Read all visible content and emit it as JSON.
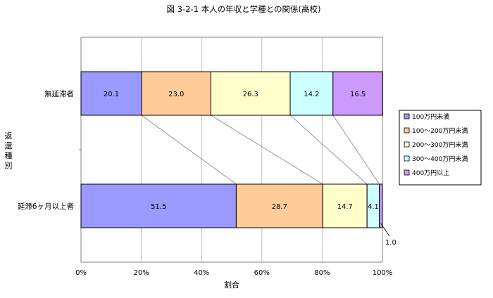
{
  "chart_data": {
    "type": "bar",
    "orientation": "horizontal",
    "stacked": "percent",
    "title": "図 3-2-1  本人の年収と学種との関係(高校)",
    "xlabel": "割合",
    "ylabel": "返還種別",
    "xlim": [
      0,
      100
    ],
    "x_ticks": [
      "0%",
      "20%",
      "40%",
      "60%",
      "80%",
      "100%"
    ],
    "grid": true,
    "legend_position": "right",
    "categories": [
      "無延滞者",
      "延滞6ヶ月以上者"
    ],
    "series": [
      {
        "name": "100万円未満",
        "color": "#9999ff",
        "values": [
          20.1,
          51.5
        ]
      },
      {
        "name": "100～200万円未満",
        "color": "#ffcc99",
        "values": [
          23.0,
          28.7
        ]
      },
      {
        "name": "200～300万円未満",
        "color": "#ffffcc",
        "values": [
          26.3,
          14.7
        ]
      },
      {
        "name": "300～400万円未満",
        "color": "#ccffff",
        "values": [
          14.2,
          4.1
        ]
      },
      {
        "name": "400万円以上",
        "color": "#cc99ff",
        "values": [
          16.5,
          1.0
        ]
      }
    ],
    "data_labels": [
      [
        "20.1",
        "23.0",
        "26.3",
        "14.2",
        "16.5"
      ],
      [
        "51.5",
        "28.7",
        "14.7",
        "4.1",
        "1.0"
      ]
    ],
    "series_lines": true
  }
}
